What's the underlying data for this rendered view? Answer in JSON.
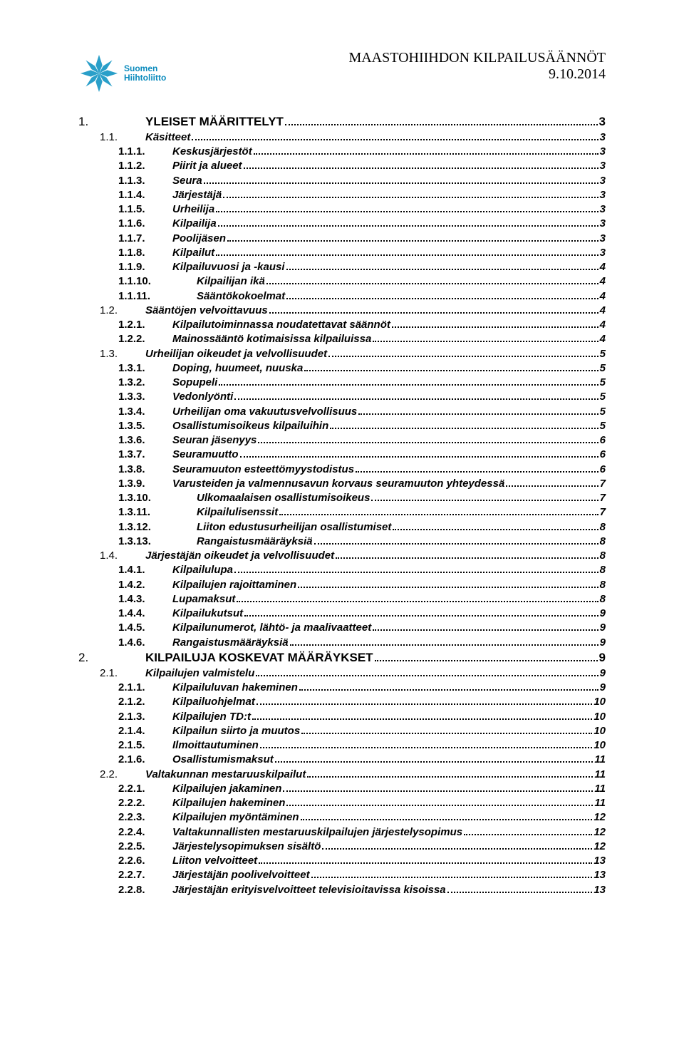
{
  "header": {
    "title": "MAASTOHIIHDON KILPAILUSÄÄNNÖT",
    "date": "9.10.2014",
    "logo_text_line1": "Suomen",
    "logo_text_line2": "Hiihtoliitto",
    "logo_color": "#2a9fc9"
  },
  "toc": [
    {
      "level": 0,
      "num": "1.",
      "label": "YLEISET MÄÄRITTELYT",
      "page": "3"
    },
    {
      "level": 1,
      "num": "1.1.",
      "label": "Käsitteet",
      "page": "3"
    },
    {
      "level": 2,
      "num": "1.1.1.",
      "label": "Keskusjärjestöt",
      "page": "3"
    },
    {
      "level": 2,
      "num": "1.1.2.",
      "label": "Piirit ja alueet",
      "page": "3"
    },
    {
      "level": 2,
      "num": "1.1.3.",
      "label": "Seura",
      "page": "3"
    },
    {
      "level": 2,
      "num": "1.1.4.",
      "label": "Järjestäjä",
      "page": "3"
    },
    {
      "level": 2,
      "num": "1.1.5.",
      "label": "Urheilija",
      "page": "3"
    },
    {
      "level": 2,
      "num": "1.1.6.",
      "label": "Kilpailija",
      "page": "3"
    },
    {
      "level": 2,
      "num": "1.1.7.",
      "label": "Poolijäsen",
      "page": "3"
    },
    {
      "level": 2,
      "num": "1.1.8.",
      "label": "Kilpailut",
      "page": "3"
    },
    {
      "level": 2,
      "num": "1.1.9.",
      "label": "Kilpailuvuosi ja -kausi",
      "page": "4"
    },
    {
      "level": 3,
      "num": "1.1.10.",
      "label": "Kilpailijan ikä",
      "page": "4"
    },
    {
      "level": 3,
      "num": "1.1.11.",
      "label": "Sääntökokoelmat",
      "page": "4"
    },
    {
      "level": 1,
      "num": "1.2.",
      "label": "Sääntöjen velvoittavuus",
      "page": "4"
    },
    {
      "level": 2,
      "num": "1.2.1.",
      "label": "Kilpailutoiminnassa noudatettavat säännöt",
      "page": "4"
    },
    {
      "level": 2,
      "num": "1.2.2.",
      "label": "Mainossääntö kotimaisissa kilpailuissa",
      "page": "4"
    },
    {
      "level": 1,
      "num": "1.3.",
      "label": "Urheilijan oikeudet ja velvollisuudet",
      "page": "5"
    },
    {
      "level": 2,
      "num": "1.3.1.",
      "label": "Doping, huumeet, nuuska",
      "page": "5"
    },
    {
      "level": 2,
      "num": "1.3.2.",
      "label": "Sopupeli",
      "page": "5"
    },
    {
      "level": 2,
      "num": "1.3.3.",
      "label": "Vedonlyönti",
      "page": "5"
    },
    {
      "level": 2,
      "num": "1.3.4.",
      "label": "Urheilijan oma vakuutusvelvollisuus",
      "page": "5"
    },
    {
      "level": 2,
      "num": "1.3.5.",
      "label": "Osallistumisoikeus kilpailuihin",
      "page": "5"
    },
    {
      "level": 2,
      "num": "1.3.6.",
      "label": "Seuran jäsenyys",
      "page": "6"
    },
    {
      "level": 2,
      "num": "1.3.7.",
      "label": "Seuramuutto",
      "page": "6"
    },
    {
      "level": 2,
      "num": "1.3.8.",
      "label": "Seuramuuton esteettömyystodistus",
      "page": "6"
    },
    {
      "level": 2,
      "num": "1.3.9.",
      "label": "Varusteiden ja valmennusavun korvaus seuramuuton yhteydessä",
      "page": "7"
    },
    {
      "level": 3,
      "num": "1.3.10.",
      "label": "Ulkomaalaisen osallistumisoikeus",
      "page": "7"
    },
    {
      "level": 3,
      "num": "1.3.11.",
      "label": "Kilpailulisenssit",
      "page": "7"
    },
    {
      "level": 3,
      "num": "1.3.12.",
      "label": "Liiton edustusurheilijan osallistumiset",
      "page": "8"
    },
    {
      "level": 3,
      "num": "1.3.13.",
      "label": "Rangaistusmääräyksiä",
      "page": "8"
    },
    {
      "level": 1,
      "num": "1.4.",
      "label": "Järjestäjän oikeudet ja velvollisuudet",
      "page": "8"
    },
    {
      "level": 2,
      "num": "1.4.1.",
      "label": "Kilpailulupa",
      "page": "8"
    },
    {
      "level": 2,
      "num": "1.4.2.",
      "label": "Kilpailujen rajoittaminen",
      "page": "8"
    },
    {
      "level": 2,
      "num": "1.4.3.",
      "label": "Lupamaksut",
      "page": "8"
    },
    {
      "level": 2,
      "num": "1.4.4.",
      "label": "Kilpailukutsut",
      "page": "9"
    },
    {
      "level": 2,
      "num": "1.4.5.",
      "label": "Kilpailunumerot, lähtö- ja maalivaatteet",
      "page": "9"
    },
    {
      "level": 2,
      "num": "1.4.6.",
      "label": "Rangaistusmääräyksiä",
      "page": "9"
    },
    {
      "level": 0,
      "num": "2.",
      "label": "KILPAILUJA KOSKEVAT MÄÄRÄYKSET",
      "page": "9"
    },
    {
      "level": 1,
      "num": "2.1.",
      "label": "Kilpailujen valmistelu",
      "page": "9"
    },
    {
      "level": 2,
      "num": "2.1.1.",
      "label": "Kilpailuluvan hakeminen",
      "page": "9"
    },
    {
      "level": 2,
      "num": "2.1.2.",
      "label": "Kilpailuohjelmat",
      "page": "10"
    },
    {
      "level": 2,
      "num": "2.1.3.",
      "label": "Kilpailujen TD:t",
      "page": "10"
    },
    {
      "level": 2,
      "num": "2.1.4.",
      "label": "Kilpailun siirto ja muutos",
      "page": "10"
    },
    {
      "level": 2,
      "num": "2.1.5.",
      "label": "Ilmoittautuminen",
      "page": "10"
    },
    {
      "level": 2,
      "num": "2.1.6.",
      "label": "Osallistumismaksut",
      "page": "11"
    },
    {
      "level": 1,
      "num": "2.2.",
      "label": "Valtakunnan mestaruuskilpailut",
      "page": "11"
    },
    {
      "level": 2,
      "num": "2.2.1.",
      "label": "Kilpailujen jakaminen",
      "page": "11"
    },
    {
      "level": 2,
      "num": "2.2.2.",
      "label": "Kilpailujen hakeminen",
      "page": "11"
    },
    {
      "level": 2,
      "num": "2.2.3.",
      "label": "Kilpailujen myöntäminen",
      "page": "12"
    },
    {
      "level": 2,
      "num": "2.2.4.",
      "label": "Valtakunnallisten mestaruuskilpailujen järjestelysopimus",
      "page": "12"
    },
    {
      "level": 2,
      "num": "2.2.5.",
      "label": "Järjestelysopimuksen sisältö",
      "page": "12"
    },
    {
      "level": 2,
      "num": "2.2.6.",
      "label": "Liiton velvoitteet",
      "page": "13"
    },
    {
      "level": 2,
      "num": "2.2.7.",
      "label": "Järjestäjän poolivelvoitteet",
      "page": "13"
    },
    {
      "level": 2,
      "num": "2.2.8.",
      "label": "Järjestäjän erityisvelvoitteet televisioitavissa kisoissa",
      "page": "13"
    }
  ]
}
